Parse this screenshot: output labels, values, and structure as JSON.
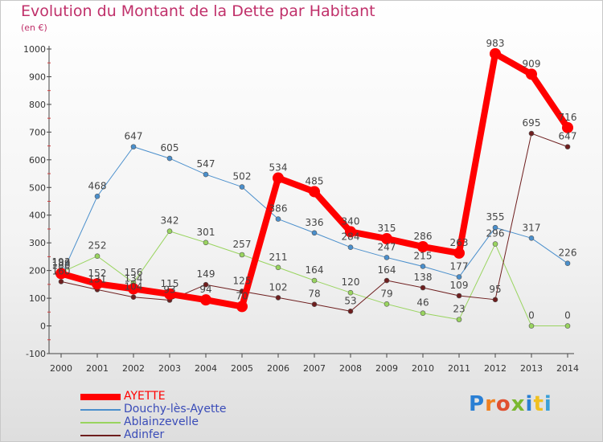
{
  "title": "Evolution du Montant de la Dette par Habitant",
  "subtitle": "(en €)",
  "logo_text": "Proxiti",
  "chart_data": {
    "type": "line",
    "title": "Evolution du Montant de la Dette par Habitant",
    "ylabel": "(en €)",
    "xlabel": "",
    "ylim": [
      -100,
      1000
    ],
    "yticks": [
      -100,
      0,
      100,
      200,
      300,
      400,
      500,
      600,
      700,
      800,
      900,
      1000
    ],
    "x": [
      "2000",
      "2001",
      "2002",
      "2003",
      "2004",
      "2005",
      "2006",
      "2007",
      "2008",
      "2009",
      "2010",
      "2011",
      "2012",
      "2013",
      "2014"
    ],
    "grid": false,
    "legend_position": "bottom-left",
    "series": [
      {
        "name": "Douchy-lès-Ayette",
        "color": "#4a8fcc",
        "width": 1,
        "values": [
          180,
          468,
          647,
          605,
          547,
          502,
          386,
          336,
          284,
          247,
          215,
          177,
          355,
          317,
          226
        ]
      },
      {
        "name": "Ablainzevelle",
        "color": "#99d45f",
        "width": 1,
        "values": [
          193,
          252,
          156,
          342,
          301,
          257,
          211,
          164,
          120,
          79,
          46,
          23,
          296,
          0,
          0
        ]
      },
      {
        "name": "Adinfer",
        "color": "#6e1e1e",
        "width": 1,
        "values": [
          160,
          131,
          104,
          93,
          149,
          125,
          102,
          78,
          53,
          164,
          138,
          109,
          95,
          695,
          647
        ]
      },
      {
        "name": "AYETTE",
        "color": "#ff0000",
        "width": 8,
        "values": [
          189,
          152,
          134,
          115,
          94,
          70,
          534,
          485,
          340,
          315,
          286,
          263,
          983,
          909,
          716
        ]
      }
    ],
    "legend_order": [
      "AYETTE",
      "Douchy-lès-Ayette",
      "Ablainzevelle",
      "Adinfer"
    ],
    "value_labels": [
      {
        "series": "AYETTE",
        "labels": [
          "189",
          "152",
          "134",
          "115",
          "94",
          "70",
          "534",
          "485",
          "340",
          "315",
          "286",
          "263",
          "983",
          "909",
          "716"
        ]
      },
      {
        "series": "Douchy-lès-Ayette",
        "labels": [
          "180",
          "468",
          "647",
          "605",
          "547",
          "502",
          "386",
          "336",
          "284",
          "247",
          "215",
          "177",
          "355",
          "317",
          "226"
        ]
      },
      {
        "series": "Ablainzevelle",
        "labels": [
          "193",
          "252",
          "156",
          "342",
          "301",
          "257",
          "211",
          "164",
          "120",
          "79",
          "46",
          "23",
          "296",
          "0",
          "0"
        ]
      },
      {
        "series": "Adinfer",
        "labels": [
          "160",
          "131",
          "104",
          "93",
          "149",
          "125",
          "102",
          "78",
          "53",
          "164",
          "138",
          "109",
          "95",
          "695",
          "647"
        ]
      }
    ]
  }
}
